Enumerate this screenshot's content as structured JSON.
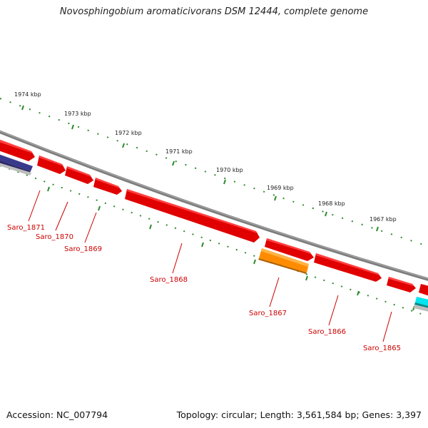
{
  "title": "Novosphingobium aromaticivorans DSM 12444, complete genome",
  "footer": {
    "accession": "Accession: NC_007794",
    "summary": "Topology: circular; Length: 3,561,584 bp; Genes: 3,397"
  },
  "scale_labels": [
    "1974 kbp",
    "1973 kbp",
    "1972 kbp",
    "1971 kbp",
    "1970 kbp",
    "1969 kbp",
    "1968 kbp",
    "1967 kbp"
  ],
  "genes": [
    {
      "name": "Saro_1871",
      "color": "#ff0000"
    },
    {
      "name": "Saro_1870",
      "color": "#ff0000"
    },
    {
      "name": "Saro_1869",
      "color": "#ff0000"
    },
    {
      "name": "Saro_1868",
      "color": "#ff0000"
    },
    {
      "name": "Saro_1867",
      "color": "#ff8c00"
    },
    {
      "name": "Saro_1866",
      "color": "#ff0000"
    },
    {
      "name": "Saro_1865",
      "color": "#ff0000"
    }
  ],
  "colors": {
    "forward_strand": "#ff0000",
    "orange_gene": "#ff8c00",
    "purple_feature": "#3a3a8c",
    "cyan_feature": "#00e5ee",
    "backbone": "#808080",
    "ticks": "#2e8b2e",
    "gene_label": "#cc0000"
  }
}
